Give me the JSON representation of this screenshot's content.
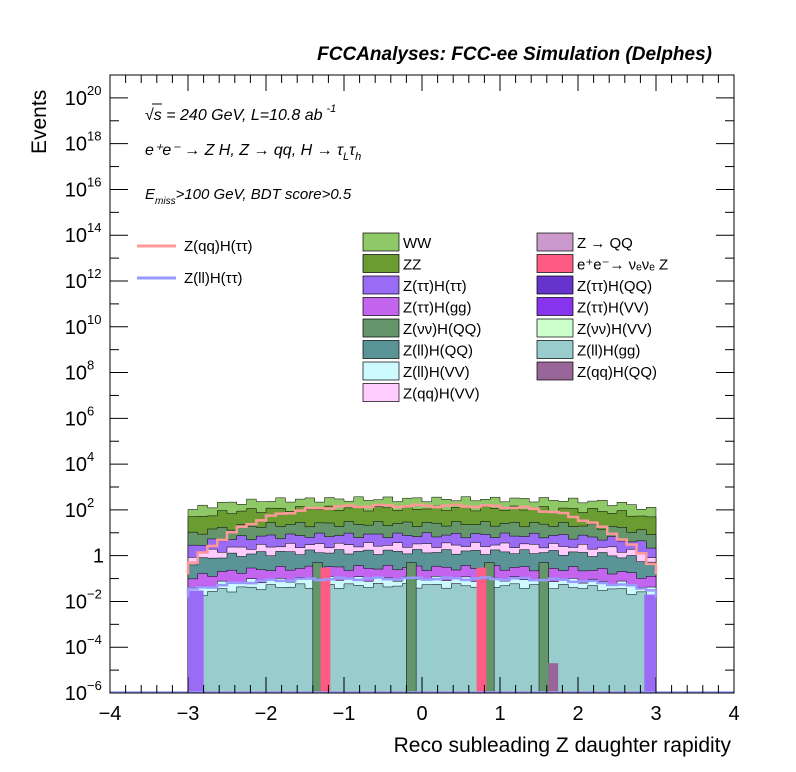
{
  "header": {
    "title": "FCCAnalyses: FCC-ee Simulation (Delphes)"
  },
  "annotations": {
    "energy_prefix": "√s = 240 GeV, L=10.8 ab",
    "energy_exp": "-1",
    "process_main": "e⁺e⁻ → Z H, Z → qq, H → τ",
    "process_sub1": "L",
    "process_mid": "τ",
    "process_sub2": "h",
    "cut_prefix": "E",
    "cut_sub": "miss",
    "cut_rest": ">100 GeV, BDT score>0.5"
  },
  "colors": {
    "WW": "#8fc866",
    "ZZ": "#6b9c32",
    "Z(ττ)H(ττ)": "#9a6cf5",
    "Z(ττ)H(gg)": "#c465f0",
    "Z(νν)H(QQ)": "#65956a",
    "Z(ll)H(QQ)": "#5b9497",
    "Z(ll)H(VV)": "#ccfaff",
    "Z(qq)H(VV)": "#ffccff",
    "Z → QQ": "#cc99cc",
    "e⁺e⁻→ νₑνₑ Z": "#ff5c85",
    "Z(ττ)H(QQ)": "#6633cc",
    "Z(ττ)H(VV)": "#8833ee",
    "Z(νν)H(VV)": "#ccffcc",
    "Z(ll)H(gg)": "#99cccc",
    "Z(qq)H(QQ)": "#996699",
    "sig_qq": "#ff9999",
    "sig_ll": "#9999ff"
  },
  "chart_data": {
    "type": "area",
    "stacked": true,
    "xlabel": "Reco subleading Z daughter rapidity",
    "ylabel": "Events",
    "xlim": [
      -4,
      4
    ],
    "ylim": [
      1e-06,
      1e+21
    ],
    "log_y": true,
    "x_ticks": [
      "−4",
      "−3",
      "−2",
      "−1",
      "0",
      "1",
      "2",
      "3",
      "4"
    ],
    "y_ticks": [
      {
        "b": "10",
        "e": "−6"
      },
      {
        "b": "10",
        "e": "−4"
      },
      {
        "b": "10",
        "e": "−2"
      },
      {
        "b": "1",
        "e": ""
      },
      {
        "b": "10",
        "e": "2"
      },
      {
        "b": "10",
        "e": "4"
      },
      {
        "b": "10",
        "e": "6"
      },
      {
        "b": "10",
        "e": "8"
      },
      {
        "b": "10",
        "e": "10"
      },
      {
        "b": "10",
        "e": "12"
      },
      {
        "b": "10",
        "e": "14"
      },
      {
        "b": "10",
        "e": "16"
      },
      {
        "b": "10",
        "e": "18"
      },
      {
        "b": "10",
        "e": "20"
      }
    ],
    "x_range_filled": [
      -3,
      3
    ],
    "stack_levels_at_center": [
      {
        "name": "Z(ll)H(gg)",
        "value": 0.05
      },
      {
        "name": "Z(ll)H(VV)",
        "value": 0.1
      },
      {
        "name": "Z(ττ)H(gg)",
        "value": 0.3
      },
      {
        "name": "Z(ll)H(QQ)",
        "value": 1.5
      },
      {
        "name": "Z(qq)H(VV)",
        "value": 3
      },
      {
        "name": "Z(ττ)H(ττ)",
        "value": 8
      },
      {
        "name": "Z(νν)H(QQ)",
        "value": 25
      },
      {
        "name": "ZZ",
        "value": 120
      },
      {
        "name": "WW",
        "value": 300
      }
    ],
    "signal_series": [
      {
        "name": "Z(qq)H(ττ)",
        "center_value": 150,
        "edge_value": 0.3
      },
      {
        "name": "Z(ll)H(ττ)",
        "center_value": 0.1,
        "edge_value": 0.03
      }
    ],
    "legend_signal": [
      "Z(qq)H(ττ)",
      "Z(ll)H(ττ)"
    ],
    "legend_left": [
      "WW",
      "ZZ",
      "Z(ττ)H(ττ)",
      "Z(ττ)H(gg)",
      "Z(νν)H(QQ)",
      "Z(ll)H(QQ)",
      "Z(ll)H(VV)",
      "Z(qq)H(VV)"
    ],
    "legend_right": [
      "Z → QQ",
      "e⁺e⁻→ νₑνₑ Z",
      "Z(ττ)H(QQ)",
      "Z(ττ)H(VV)",
      "Z(νν)H(VV)",
      "Z(ll)H(gg)",
      "Z(qq)H(QQ)"
    ]
  }
}
